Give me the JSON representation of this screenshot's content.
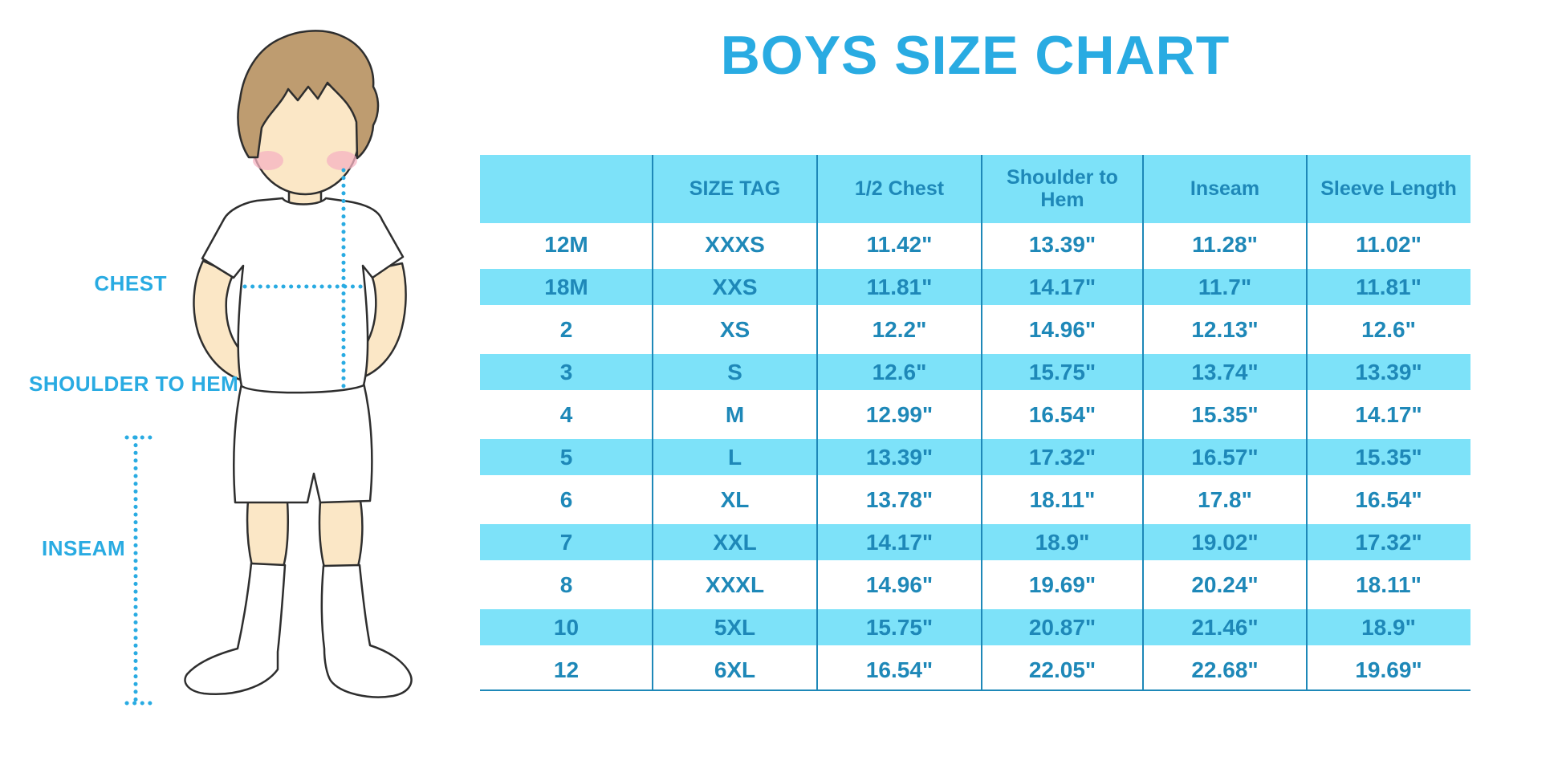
{
  "chart_data": {
    "type": "table",
    "title": "BOYS SIZE CHART",
    "columns": [
      "",
      "SIZE TAG",
      "1/2 Chest",
      "Shoulder to Hem",
      "Inseam",
      "Sleeve Length"
    ],
    "rows": [
      [
        "12M",
        "XXXS",
        "11.42\"",
        "13.39\"",
        "11.28\"",
        "11.02\""
      ],
      [
        "18M",
        "XXS",
        "11.81\"",
        "14.17\"",
        "11.7\"",
        "11.81\""
      ],
      [
        "2",
        "XS",
        "12.2\"",
        "14.96\"",
        "12.13\"",
        "12.6\""
      ],
      [
        "3",
        "S",
        "12.6\"",
        "15.75\"",
        "13.74\"",
        "13.39\""
      ],
      [
        "4",
        "M",
        "12.99\"",
        "16.54\"",
        "15.35\"",
        "14.17\""
      ],
      [
        "5",
        "L",
        "13.39\"",
        "17.32\"",
        "16.57\"",
        "15.35\""
      ],
      [
        "6",
        "XL",
        "13.78\"",
        "18.11\"",
        "17.8\"",
        "16.54\""
      ],
      [
        "7",
        "XXL",
        "14.17\"",
        "18.9\"",
        "19.02\"",
        "17.32\""
      ],
      [
        "8",
        "XXXL",
        "14.96\"",
        "19.69\"",
        "20.24\"",
        "18.11\""
      ],
      [
        "10",
        "5XL",
        "15.75\"",
        "20.87\"",
        "21.46\"",
        "18.9\""
      ],
      [
        "12",
        "6XL",
        "16.54\"",
        "22.05\"",
        "22.68\"",
        "19.69\""
      ]
    ],
    "stripe_rows": [
      "18M",
      "3",
      "5",
      "7",
      "10"
    ],
    "header_fill": "#7DE2F9",
    "legend_position": "none",
    "grid": "vertical-only"
  },
  "figure": {
    "labels": {
      "chest": "CHEST",
      "shoulder_to_hem": "SHOULDER TO HEM",
      "inseam": "INSEAM"
    }
  },
  "colors": {
    "accent_blue": "#29ABE2",
    "table_stripe": "#7DE2F9",
    "table_text": "#1E88B8",
    "skin": "#FBE7C6",
    "hair": "#BE9C70",
    "blush": "#F5B3C2",
    "outline": "#2E2E2E"
  }
}
